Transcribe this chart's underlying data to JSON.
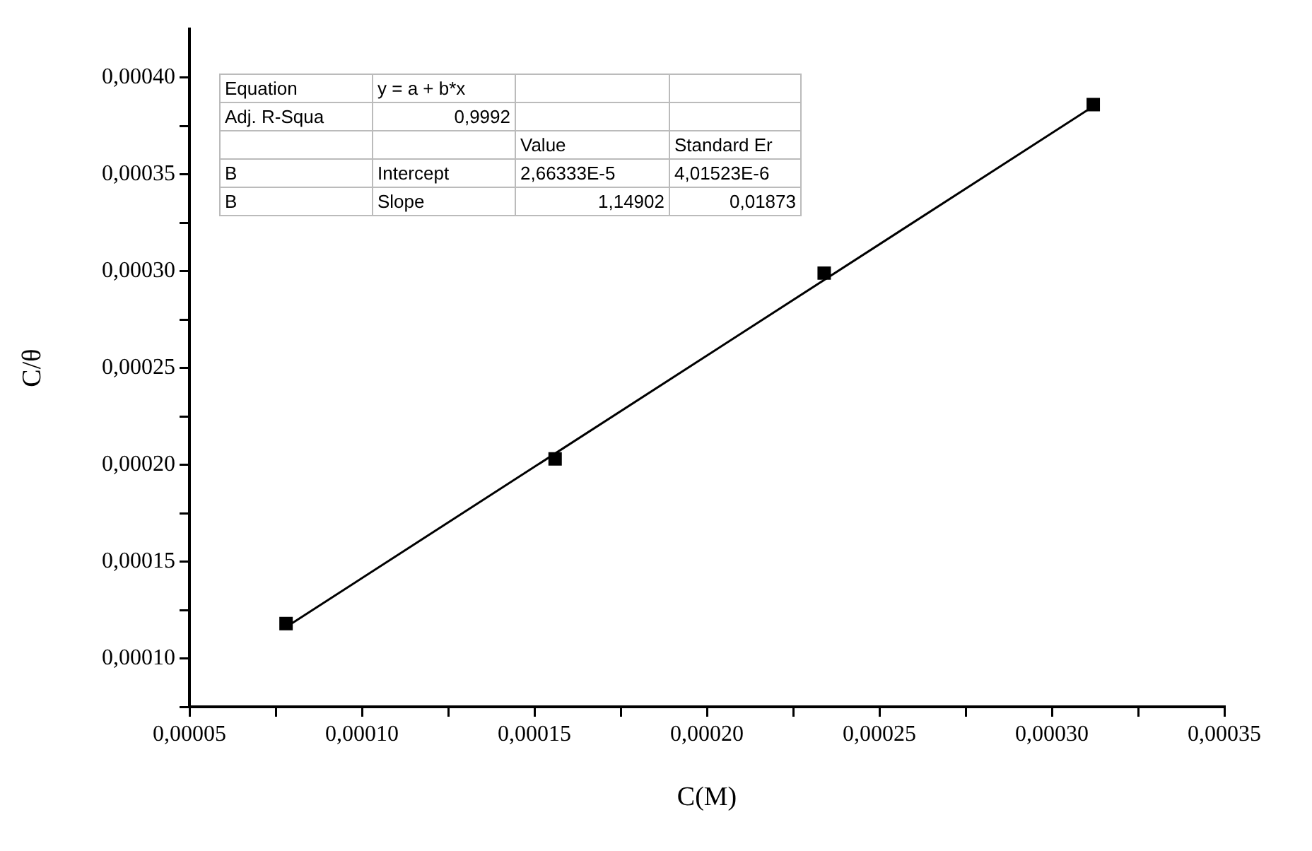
{
  "chart_data": {
    "type": "scatter",
    "xlabel": "C(M)",
    "ylabel": "C/θ",
    "xlim": [
      5e-05,
      0.00035
    ],
    "xticks": [
      {
        "value": 5e-05,
        "label": "0,00005"
      },
      {
        "value": 7.5e-05,
        "label": null
      },
      {
        "value": 0.0001,
        "label": "0,00010"
      },
      {
        "value": 0.000125,
        "label": null
      },
      {
        "value": 0.00015,
        "label": "0,00015"
      },
      {
        "value": 0.000175,
        "label": null
      },
      {
        "value": 0.0002,
        "label": "0,00020"
      },
      {
        "value": 0.000225,
        "label": null
      },
      {
        "value": 0.00025,
        "label": "0,00025"
      },
      {
        "value": 0.000275,
        "label": null
      },
      {
        "value": 0.0003,
        "label": "0,00030"
      },
      {
        "value": 0.000325,
        "label": null
      },
      {
        "value": 0.00035,
        "label": "0,00035"
      }
    ],
    "ylim": [
      7.5e-05,
      0.000425
    ],
    "yticks": [
      {
        "value": 7.5e-05,
        "label": null
      },
      {
        "value": 0.0001,
        "label": "0,00010"
      },
      {
        "value": 0.000125,
        "label": null
      },
      {
        "value": 0.00015,
        "label": "0,00015"
      },
      {
        "value": 0.000175,
        "label": null
      },
      {
        "value": 0.0002,
        "label": "0,00020"
      },
      {
        "value": 0.000225,
        "label": null
      },
      {
        "value": 0.00025,
        "label": "0,00025"
      },
      {
        "value": 0.000275,
        "label": null
      },
      {
        "value": 0.0003,
        "label": "0,00030"
      },
      {
        "value": 0.000325,
        "label": null
      },
      {
        "value": 0.00035,
        "label": "0,00035"
      },
      {
        "value": 0.000375,
        "label": null
      },
      {
        "value": 0.0004,
        "label": "0,00040"
      }
    ],
    "grid": false,
    "legend": false,
    "series": [
      {
        "color": "#000000",
        "marker": "square",
        "x": [
          7.8e-05,
          0.000156,
          0.000234,
          0.000312
        ],
        "values": [
          0.000118,
          0.000203,
          0.000299,
          0.000386
        ]
      },
      {
        "type": "line",
        "color": "#000000",
        "marker": "none",
        "line_style": "solid",
        "x": [
          7.8e-05,
          0.000312
        ],
        "values": [
          0.0001162,
          0.0003851
        ]
      }
    ],
    "annotations": [
      "Equation",
      "y = a + b*x",
      null,
      null,
      "Adj. R-Squa",
      "0,9992",
      null,
      null,
      null,
      null,
      "Value",
      "Standard Er",
      "B",
      "Intercept",
      "2,66333E-5",
      "4,01523E-6",
      "B",
      "Slope",
      "1,14902",
      "0,01873"
    ]
  }
}
